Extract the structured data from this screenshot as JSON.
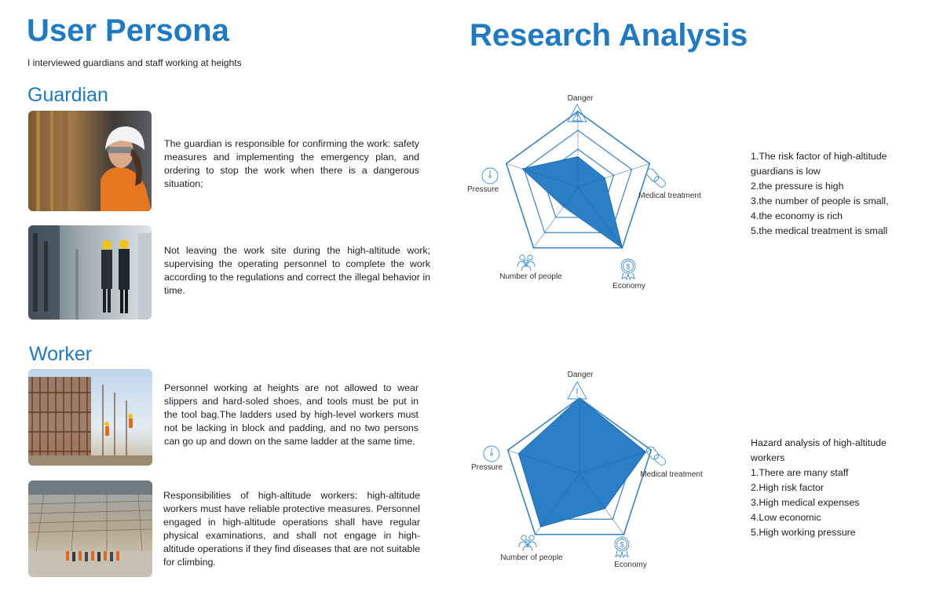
{
  "left": {
    "title": "User Persona",
    "intro": "I interviewed guardians and staff working at heights",
    "guardian": {
      "heading": "Guardian",
      "paragraphs": [
        "The guardian is responsible for confirming the work: safety measures and implementing the emergency plan, and ordering to stop the work when there is a dangerous situation;",
        "Not leaving the work site during the high-altitude work; supervising the operating personnel to complete the work according to the regulations and correct the illegal behavior in time."
      ]
    },
    "worker": {
      "heading": "Worker",
      "paragraphs": [
        "Personnel working at heights are not allowed to wear slippers and hard-soled shoes, and tools must be put in the tool bag.The ladders used by high-level workers must not be lacking in block and padding, and no two persons can go up and down on the same ladder at the same time.",
        "Responsibilities of high-altitude workers: high-altitude workers must have reliable protective measures. Personnel engaged in high-altitude operations shall have regular physical examinations, and shall not engage in high-altitude operations if they find diseases that are not suitable for climbing."
      ]
    }
  },
  "right": {
    "title": "Research Analysis",
    "axes": [
      "Danger",
      "Medical treatment",
      "Economy",
      "Number of people",
      "Pressure"
    ],
    "icons": [
      "warning-triangle-icon",
      "pills-icon",
      "dollar-coin-icon",
      "people-group-icon",
      "pressure-gauge-icon"
    ],
    "guardian_findings": [
      "1.The risk factor of high-altitude guardians is low",
      "2.the pressure is high",
      "3.the number of people is small,",
      "4.the economy is rich",
      "5.the medical treatment is small"
    ],
    "worker_findings": [
      "Hazard analysis of high-altitude workers",
      "1.There are many staff",
      "2.High risk factor",
      "3.High medical expenses",
      "4.Low economic",
      "5.High working pressure"
    ]
  },
  "chart_data": [
    {
      "type": "radar",
      "axes": [
        "Danger",
        "Medical treatment",
        "Economy",
        "Number of people",
        "Pressure"
      ],
      "rings": 4,
      "max": 4,
      "values": [
        1.6,
        1.5,
        4.0,
        1.3,
        3.1
      ]
    },
    {
      "type": "radar",
      "axes": [
        "Danger",
        "Medical treatment",
        "Economy",
        "Number of people",
        "Pressure"
      ],
      "rings": 4,
      "max": 4,
      "values": [
        4.0,
        3.7,
        2.3,
        3.5,
        3.4
      ]
    }
  ],
  "colors": {
    "accent": "#1f7ac4",
    "radar_fill": "#2b7fc6",
    "radar_line": "#3a85c8"
  }
}
